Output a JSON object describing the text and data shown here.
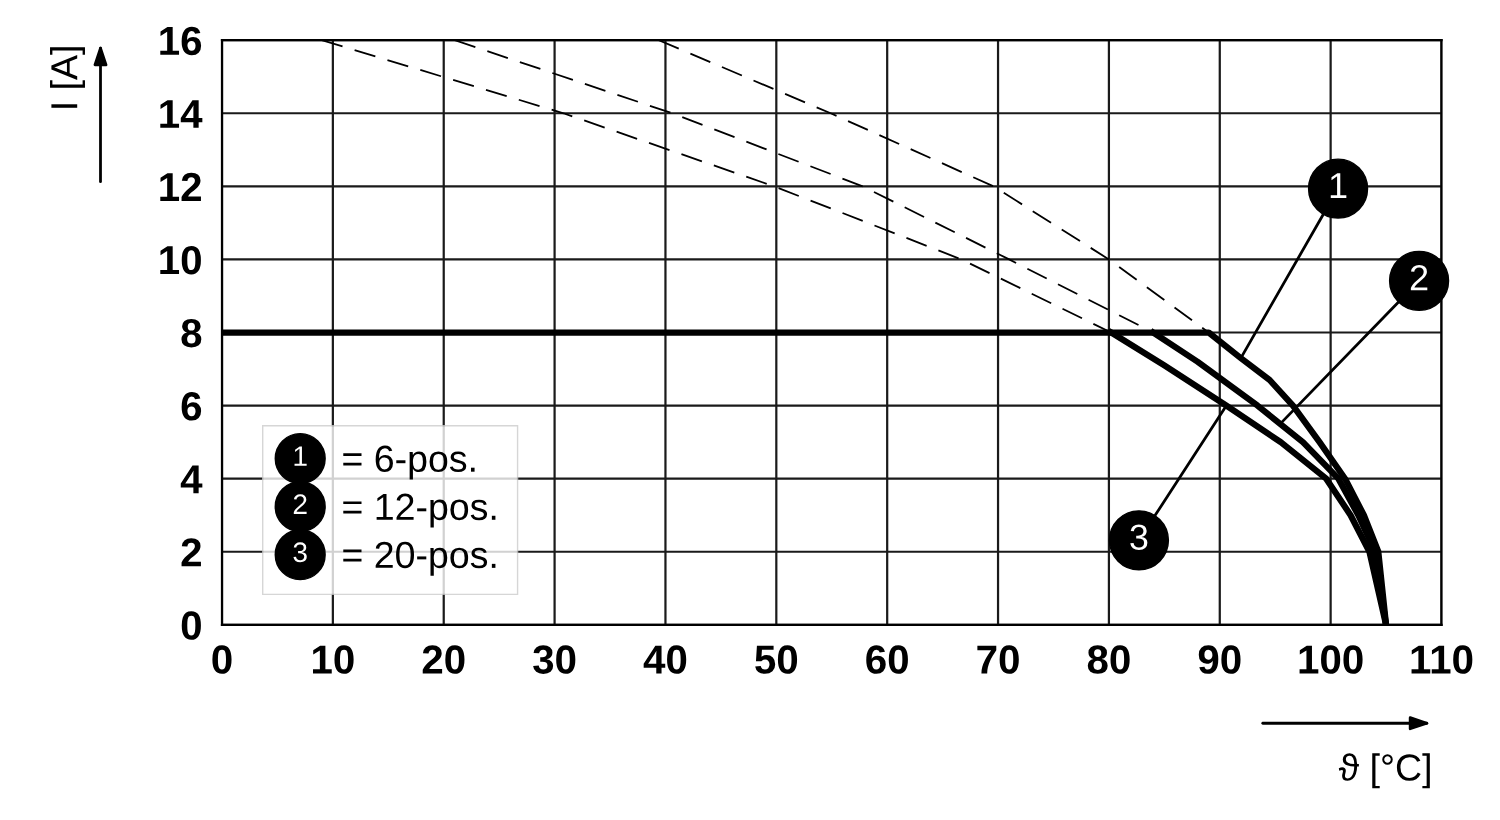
{
  "chart_data": {
    "type": "line",
    "xlabel": "ϑ [°C]",
    "ylabel": "I [A]",
    "xlim": [
      0,
      110
    ],
    "ylim": [
      0,
      16
    ],
    "xticks": [
      0,
      10,
      20,
      30,
      40,
      50,
      60,
      70,
      80,
      90,
      100,
      110
    ],
    "yticks": [
      0,
      2,
      4,
      6,
      8,
      10,
      12,
      14,
      16
    ],
    "grid": true,
    "legend": "bottom left",
    "marker": "none",
    "series": [
      {
        "name": "= 6-pos.",
        "color": "#000000",
        "line_style": "solid",
        "x": [
          0,
          89,
          91.9,
          94.5,
          96.6,
          99,
          101.3,
          103,
          104.3,
          105
        ],
        "values": [
          8,
          8,
          7.3,
          6.7,
          6,
          5,
          4,
          3,
          2,
          0
        ]
      },
      {
        "name": "= 12-pos.",
        "color": "#000000",
        "line_style": "solid",
        "x": [
          84,
          88,
          93.4,
          97.5,
          100.7,
          102.5,
          104,
          105
        ],
        "values": [
          8,
          7.2,
          6,
          5,
          4,
          3,
          2,
          0
        ]
      },
      {
        "name": "= 20-pos.",
        "color": "#000000",
        "line_style": "solid",
        "x": [
          80.2,
          85,
          90.6,
          95.5,
          99.6,
          101.8,
          103.5,
          105
        ],
        "values": [
          8,
          7.1,
          6,
          5,
          4,
          3,
          2,
          0
        ]
      },
      {
        "color": "#000000",
        "line_style": "dashed",
        "x": [
          39.4,
          54.9,
          69.6,
          80,
          89
        ],
        "values": [
          16,
          14,
          12,
          10,
          8
        ]
      },
      {
        "color": "#000000",
        "line_style": "dashed",
        "x": [
          21,
          40.6,
          57.8,
          71,
          84
        ],
        "values": [
          16,
          14,
          12,
          10,
          8
        ]
      },
      {
        "color": "#000000",
        "line_style": "dashed",
        "x": [
          9,
          30.8,
          49.8,
          66.7,
          80.2
        ],
        "values": [
          16,
          14,
          12,
          10,
          8
        ]
      }
    ],
    "annotations": [
      {
        "text": "1",
        "x": 91.9,
        "y": 7.3
      },
      {
        "text": "2",
        "x": 95.45,
        "y": 5.5
      },
      {
        "text": "3",
        "x": 90.6,
        "y": 6
      }
    ]
  }
}
